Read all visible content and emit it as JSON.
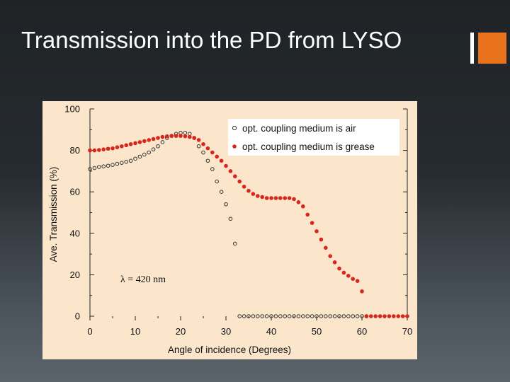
{
  "slide": {
    "title": "Transmission into the PD from LYSO",
    "accent_color": "#e8731c"
  },
  "chart_data": {
    "type": "scatter",
    "title": "",
    "xlabel": "Angle of incidence (Degrees)",
    "ylabel": "Ave. Transmission (%)",
    "xlim": [
      0,
      70
    ],
    "ylim": [
      0,
      100
    ],
    "xticks": [
      0,
      10,
      20,
      30,
      40,
      50,
      60,
      70
    ],
    "yticks": [
      0,
      20,
      40,
      60,
      80,
      100
    ],
    "grid": false,
    "legend_position": "top-right",
    "annotation": "λ = 420 nm",
    "background_color": "#fbe6cc",
    "series": [
      {
        "name": "opt. coupling medium is air",
        "marker": "open-circle",
        "color": "#333333",
        "x": [
          0,
          1,
          2,
          3,
          4,
          5,
          6,
          7,
          8,
          9,
          10,
          11,
          12,
          13,
          14,
          15,
          16,
          17,
          18,
          19,
          20,
          21,
          22,
          23,
          24,
          25,
          26,
          27,
          28,
          29,
          30,
          31,
          32,
          33,
          34,
          35,
          36,
          37,
          38,
          39,
          40,
          41,
          42,
          43,
          44,
          45,
          46,
          47,
          48,
          49,
          50,
          51,
          52,
          53,
          54,
          55,
          56,
          57,
          58,
          59,
          60,
          61
        ],
        "y": [
          71,
          71.5,
          72,
          72.3,
          72.6,
          73,
          73.5,
          74,
          74.5,
          75,
          76,
          77,
          78,
          79,
          80.5,
          82,
          84,
          86,
          87,
          88,
          88.5,
          88.5,
          88,
          86,
          82,
          79,
          75,
          71,
          65,
          60,
          54,
          47,
          35,
          0,
          0,
          0,
          0,
          0,
          0,
          0,
          0,
          0,
          0,
          0,
          0,
          0,
          0,
          0,
          0,
          0,
          0,
          0,
          0,
          0,
          0,
          0,
          0,
          0,
          0,
          0,
          0,
          0
        ]
      },
      {
        "name": "opt. coupling medium is grease",
        "marker": "filled-circle",
        "color": "#d9261c",
        "x": [
          0,
          1,
          2,
          3,
          4,
          5,
          6,
          7,
          8,
          9,
          10,
          11,
          12,
          13,
          14,
          15,
          16,
          17,
          18,
          19,
          20,
          21,
          22,
          23,
          24,
          25,
          26,
          27,
          28,
          29,
          30,
          31,
          32,
          33,
          34,
          35,
          36,
          37,
          38,
          39,
          40,
          41,
          42,
          43,
          44,
          45,
          46,
          47,
          48,
          49,
          50,
          51,
          52,
          53,
          54,
          55,
          56,
          57,
          58,
          59,
          60,
          61,
          62,
          63,
          64,
          65,
          66,
          67,
          68,
          69,
          70
        ],
        "y": [
          80,
          80,
          80.2,
          80.5,
          80.8,
          81,
          81.5,
          82,
          82.5,
          83,
          83.5,
          84,
          84.5,
          85,
          85.5,
          86,
          86.5,
          86.8,
          87,
          87,
          87,
          86.8,
          86.5,
          86,
          85,
          83,
          81,
          79,
          77,
          75,
          72.5,
          70,
          67.5,
          65,
          62.5,
          60.5,
          59,
          58,
          57.5,
          57,
          57,
          57,
          57,
          57,
          57,
          56.5,
          55,
          53,
          49,
          45,
          41,
          37,
          33,
          29,
          26,
          23,
          21,
          19.5,
          18,
          17,
          12,
          0,
          0,
          0,
          0,
          0,
          0,
          0,
          0,
          0,
          0
        ]
      }
    ]
  }
}
